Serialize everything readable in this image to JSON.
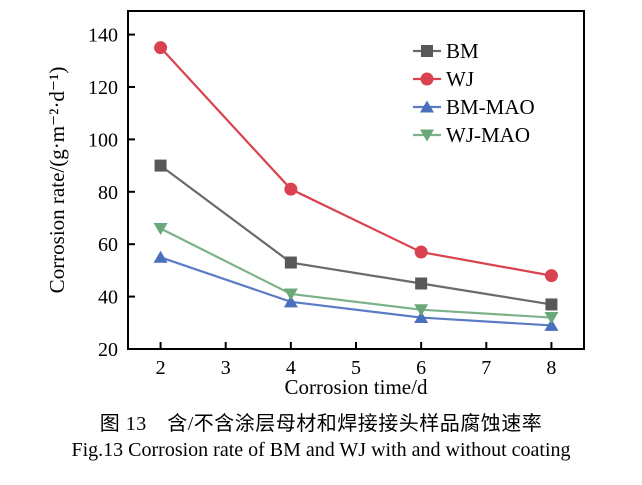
{
  "chart_data": {
    "type": "line",
    "title": "",
    "xlabel": "Corrosion time/d",
    "ylabel": "Corrosion rate/(g·m⁻²·d⁻¹)",
    "x": [
      2,
      4,
      6,
      8
    ],
    "xticks": [
      2,
      3,
      4,
      5,
      6,
      7,
      8
    ],
    "yticks": [
      20,
      40,
      60,
      80,
      100,
      120,
      140
    ],
    "xlim": [
      1.5,
      8.5
    ],
    "ylim": [
      20,
      149
    ],
    "grid": false,
    "legend_position": "upper right",
    "axis_color": "#000000",
    "series": [
      {
        "name": "BM",
        "marker": "square",
        "color": "#58585a",
        "line_color": "#6b6b6b",
        "values": [
          90,
          53,
          45,
          37
        ]
      },
      {
        "name": "WJ",
        "marker": "circle",
        "color": "#d9424e",
        "line_color": "#d9424e",
        "values": [
          135,
          81,
          57,
          48
        ]
      },
      {
        "name": "BM-MAO",
        "marker": "triangle-up",
        "color": "#4a6fbe",
        "line_color": "#5a7cc4",
        "values": [
          55,
          38,
          32,
          29
        ]
      },
      {
        "name": "WJ-MAO",
        "marker": "triangle-down",
        "color": "#6aa87a",
        "line_color": "#7bb289",
        "values": [
          66,
          41,
          35,
          32
        ]
      }
    ]
  },
  "captions": {
    "chinese": "图 13　含/不含涂层母材和焊接接头样品腐蚀速率",
    "english": "Fig.13 Corrosion rate of BM and WJ with and without coating"
  }
}
